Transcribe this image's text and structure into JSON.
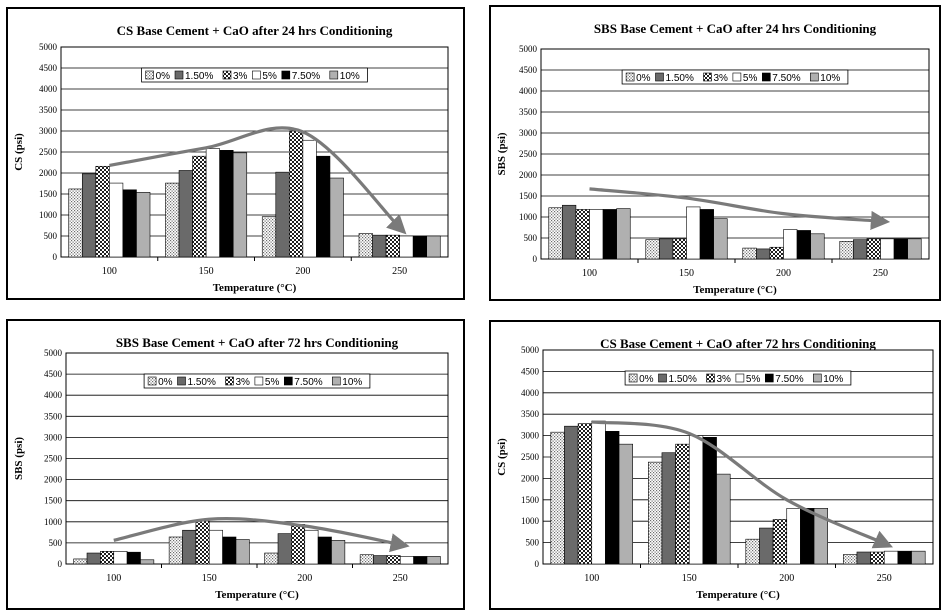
{
  "chart_data": [
    {
      "type": "bar",
      "title": "CS Base Cement + CaO after 24 hrs Conditioning",
      "xlabel": "Temperature (°C)",
      "ylabel": "CS (psi)",
      "ylim": [
        0,
        5000
      ],
      "yticks": [
        0,
        500,
        1000,
        1500,
        2000,
        2500,
        3000,
        3500,
        4000,
        4500,
        5000
      ],
      "categories": [
        "100",
        "150",
        "200",
        "250"
      ],
      "legend_position": "top-center",
      "grid": true,
      "series": [
        {
          "name": "0%",
          "values": [
            1620,
            1760,
            960,
            560
          ]
        },
        {
          "name": "1.50%",
          "values": [
            1980,
            2060,
            2020,
            520
          ]
        },
        {
          "name": "3%",
          "values": [
            2160,
            2400,
            3000,
            520
          ]
        },
        {
          "name": "5%",
          "values": [
            1760,
            2580,
            2780,
            500
          ]
        },
        {
          "name": "7.50%",
          "values": [
            1600,
            2540,
            2400,
            500
          ]
        },
        {
          "name": "10%",
          "values": [
            1540,
            2480,
            1880,
            500
          ]
        }
      ],
      "trend": [
        [
          0,
          2180
        ],
        [
          1,
          2600
        ],
        [
          2,
          2980
        ],
        [
          3,
          700
        ]
      ]
    },
    {
      "type": "bar",
      "title": "SBS Base Cement + CaO after 24 hrs Conditioning",
      "xlabel": "Temperature (°C)",
      "ylabel": "SBS (psi)",
      "ylim": [
        0,
        5000
      ],
      "yticks": [
        0,
        500,
        1000,
        1500,
        2000,
        2500,
        3000,
        3500,
        4000,
        4500,
        5000
      ],
      "categories": [
        "100",
        "150",
        "200",
        "250"
      ],
      "legend_position": "top-center",
      "grid": true,
      "series": [
        {
          "name": "0%",
          "values": [
            1220,
            460,
            260,
            420
          ]
        },
        {
          "name": "1.50%",
          "values": [
            1280,
            480,
            240,
            460
          ]
        },
        {
          "name": "3%",
          "values": [
            1180,
            480,
            280,
            480
          ]
        },
        {
          "name": "5%",
          "values": [
            1180,
            1240,
            700,
            480
          ]
        },
        {
          "name": "7.50%",
          "values": [
            1180,
            1180,
            680,
            480
          ]
        },
        {
          "name": "10%",
          "values": [
            1200,
            960,
            600,
            480
          ]
        }
      ],
      "trend": [
        [
          0,
          1670
        ],
        [
          1,
          1450
        ],
        [
          2,
          1080
        ],
        [
          3,
          900
        ]
      ]
    },
    {
      "type": "bar",
      "title": "SBS Base Cement + CaO after 72 hrs Conditioning",
      "xlabel": "Temperature (°C)",
      "ylabel": "SBS (psi)",
      "ylim": [
        0,
        5000
      ],
      "yticks": [
        0,
        500,
        1000,
        1500,
        2000,
        2500,
        3000,
        3500,
        4000,
        4500,
        5000
      ],
      "categories": [
        "100",
        "150",
        "200",
        "250"
      ],
      "legend_position": "top-center",
      "grid": true,
      "series": [
        {
          "name": "0%",
          "values": [
            120,
            640,
            260,
            220
          ]
        },
        {
          "name": "1.50%",
          "values": [
            260,
            800,
            720,
            200
          ]
        },
        {
          "name": "3%",
          "values": [
            300,
            1020,
            940,
            200
          ]
        },
        {
          "name": "5%",
          "values": [
            300,
            800,
            800,
            180
          ]
        },
        {
          "name": "7.50%",
          "values": [
            280,
            640,
            640,
            180
          ]
        },
        {
          "name": "10%",
          "values": [
            100,
            580,
            560,
            180
          ]
        }
      ],
      "trend": [
        [
          0,
          560
        ],
        [
          1,
          1060
        ],
        [
          2,
          900
        ],
        [
          3,
          460
        ]
      ]
    },
    {
      "type": "bar",
      "title": "CS Base Cement + CaO after 72 hrs Conditioning",
      "xlabel": "Temperature (°C)",
      "ylabel": "CS (psi)",
      "ylim": [
        0,
        5000
      ],
      "yticks": [
        0,
        500,
        1000,
        1500,
        2000,
        2500,
        3000,
        3500,
        4000,
        4500,
        5000
      ],
      "categories": [
        "100",
        "150",
        "200",
        "250"
      ],
      "legend_position": "top-center",
      "grid": true,
      "series": [
        {
          "name": "0%",
          "values": [
            3080,
            2380,
            580,
            220
          ]
        },
        {
          "name": "1.50%",
          "values": [
            3220,
            2600,
            840,
            280
          ]
        },
        {
          "name": "3%",
          "values": [
            3280,
            2800,
            1040,
            280
          ]
        },
        {
          "name": "5%",
          "values": [
            3340,
            3000,
            1300,
            300
          ]
        },
        {
          "name": "7.50%",
          "values": [
            3100,
            2960,
            1300,
            300
          ]
        },
        {
          "name": "10%",
          "values": [
            2800,
            2100,
            1300,
            300
          ]
        }
      ],
      "trend": [
        [
          0,
          3320
        ],
        [
          1,
          3050
        ],
        [
          2,
          1500
        ],
        [
          3,
          480
        ]
      ]
    }
  ]
}
